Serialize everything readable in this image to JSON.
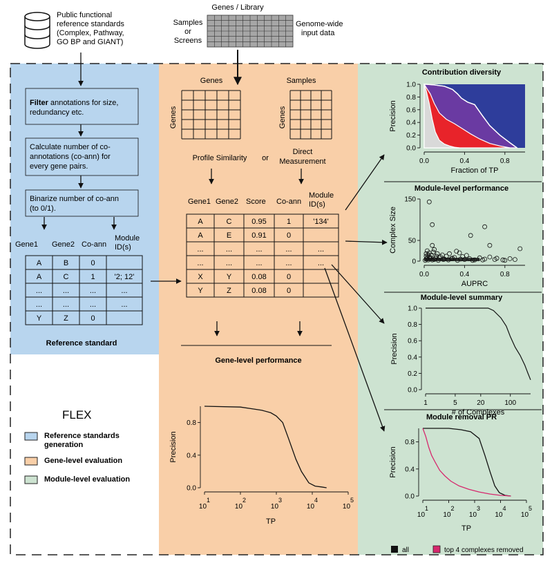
{
  "top": {
    "db_text": [
      "Public functional",
      "reference standards",
      "(Complex, Pathway,",
      "GO BP and GIANT)"
    ],
    "genes_library": "Genes / Library",
    "samples_or_screens": [
      "Samples",
      "or",
      "Screens"
    ],
    "genome_wide": [
      "Genome-wide",
      "input data"
    ]
  },
  "blue": {
    "box1": {
      "bold": "Filter",
      "lines": [
        " annotations for size,",
        "redundancy etc."
      ]
    },
    "box2": [
      "Calculate number of co-",
      "annotations (co-ann) for",
      "every gene pairs."
    ],
    "box3": [
      "Binarize number of co-ann",
      "(to 0/1)."
    ],
    "headers": [
      "Gene1",
      "Gene2",
      "Co-ann",
      "Module",
      "ID(s)"
    ],
    "rows": [
      [
        "A",
        "B",
        "0",
        ""
      ],
      [
        "A",
        "C",
        "1",
        "'2; 12'"
      ],
      [
        "...",
        "...",
        "...",
        "..."
      ],
      [
        "...",
        "...",
        "...",
        "..."
      ],
      [
        "Y",
        "Z",
        "0",
        ""
      ]
    ],
    "caption": "Reference standard"
  },
  "orange": {
    "genes_label": "Genes",
    "samples_label": "Samples",
    "row_axis_label": "Genes",
    "profile_similarity": "Profile Similarity",
    "or": "or",
    "direct": [
      "Direct",
      "Measurement"
    ],
    "headers": [
      "Gene1",
      "Gene2",
      "Score",
      "Co-ann",
      "Module",
      "ID(s)"
    ],
    "rows": [
      [
        "A",
        "C",
        "0.95",
        "1",
        "'134'"
      ],
      [
        "A",
        "E",
        "0.91",
        "0",
        ""
      ],
      [
        "...",
        "...",
        "...",
        "...",
        "..."
      ],
      [
        "...",
        "...",
        "...",
        "...",
        "..."
      ],
      [
        "X",
        "Y",
        "0.08",
        "0",
        ""
      ],
      [
        "Y",
        "Z",
        "0.08",
        "0",
        ""
      ]
    ],
    "gene_level_title": "Gene-level performance"
  },
  "legend": {
    "title": "FLEX",
    "items": [
      {
        "label": [
          "Reference standards",
          "generation"
        ],
        "color": "#b8d5ee"
      },
      {
        "label": [
          "Gene-level evaluation"
        ],
        "color": "#f9cfa8"
      },
      {
        "label": [
          "Module-level evaluation"
        ],
        "color": "#cde3d1"
      }
    ]
  },
  "colors": {
    "blue_panel": "#b8d5ee",
    "orange_panel": "#f9cfa8",
    "green_panel": "#cde3d1",
    "removed": "#d6286d"
  },
  "chart_data": [
    {
      "type": "area",
      "title": "Contribution diversity",
      "xlabel": "Fraction of TP",
      "ylabel": "Precision",
      "xlim": [
        0,
        1
      ],
      "ylim": [
        0,
        1
      ],
      "xticks": [
        "0.0",
        "0.4",
        "0.8"
      ],
      "yticks": [
        "0.0",
        "0.2",
        "0.4",
        "0.6",
        "0.8",
        "1.0"
      ],
      "series": [
        {
          "color": "#d9d9d9",
          "upper": [
            [
              0.0,
              1.0
            ],
            [
              0.02,
              0.9
            ],
            [
              0.05,
              0.7
            ],
            [
              0.08,
              0.45
            ],
            [
              0.11,
              0.25
            ],
            [
              0.15,
              0.12
            ],
            [
              0.2,
              0.06
            ],
            [
              0.25,
              0.03
            ],
            [
              0.3,
              0.01
            ],
            [
              0.35,
              0.0
            ]
          ]
        },
        {
          "color": "#e8232a",
          "upper": [
            [
              0.0,
              1.0
            ],
            [
              0.02,
              0.95
            ],
            [
              0.06,
              0.85
            ],
            [
              0.1,
              0.7
            ],
            [
              0.15,
              0.55
            ],
            [
              0.22,
              0.45
            ],
            [
              0.3,
              0.38
            ],
            [
              0.38,
              0.3
            ],
            [
              0.46,
              0.22
            ],
            [
              0.55,
              0.14
            ],
            [
              0.65,
              0.07
            ],
            [
              0.75,
              0.03
            ],
            [
              0.85,
              0.0
            ]
          ]
        },
        {
          "color": "#6a3aa2",
          "upper": [
            [
              0.0,
              1.0
            ],
            [
              0.02,
              1.0
            ],
            [
              0.1,
              0.99
            ],
            [
              0.2,
              0.97
            ],
            [
              0.28,
              0.92
            ],
            [
              0.33,
              0.85
            ],
            [
              0.37,
              0.78
            ],
            [
              0.43,
              0.72
            ],
            [
              0.5,
              0.68
            ],
            [
              0.58,
              0.5
            ],
            [
              0.65,
              0.35
            ],
            [
              0.75,
              0.2
            ],
            [
              0.85,
              0.08
            ],
            [
              0.92,
              0.0
            ]
          ]
        },
        {
          "color": "#2e3d9b",
          "upper": [
            [
              0.0,
              1.0
            ],
            [
              1.0,
              1.0
            ]
          ]
        }
      ]
    },
    {
      "type": "scatter",
      "title": "Module-level performance",
      "xlabel": "AUPRC",
      "ylabel": "Complex Size",
      "xlim": [
        0,
        1
      ],
      "ylim": [
        0,
        150
      ],
      "xticks": [
        "0.0",
        "0.4",
        "0.8"
      ],
      "yticks": [
        "0",
        "50",
        "150"
      ],
      "points": [
        [
          0.05,
          143
        ],
        [
          0.08,
          88
        ],
        [
          0.1,
          28
        ],
        [
          0.08,
          38
        ],
        [
          0.05,
          20
        ],
        [
          0.6,
          83
        ],
        [
          0.46,
          62
        ],
        [
          0.65,
          38
        ],
        [
          0.95,
          30
        ],
        [
          0.32,
          24
        ],
        [
          0.35,
          20
        ],
        [
          0.25,
          18
        ],
        [
          0.18,
          15
        ],
        [
          0.12,
          12
        ],
        [
          0.05,
          10
        ],
        [
          0.03,
          8
        ],
        [
          0.02,
          5
        ],
        [
          0.04,
          3
        ],
        [
          0.06,
          6
        ],
        [
          0.1,
          4
        ],
        [
          0.15,
          8
        ],
        [
          0.2,
          5
        ],
        [
          0.3,
          9
        ],
        [
          0.4,
          4
        ],
        [
          0.45,
          6
        ],
        [
          0.5,
          3
        ],
        [
          0.6,
          5
        ],
        [
          0.7,
          4
        ],
        [
          0.78,
          3
        ],
        [
          0.85,
          6
        ],
        [
          0.9,
          4
        ],
        [
          0.02,
          18
        ],
        [
          0.03,
          25
        ],
        [
          0.07,
          15
        ],
        [
          0.09,
          22
        ],
        [
          0.13,
          18
        ],
        [
          0.22,
          12
        ],
        [
          0.28,
          7
        ],
        [
          0.38,
          11
        ],
        [
          0.42,
          14
        ],
        [
          0.55,
          8
        ],
        [
          0.65,
          10
        ],
        [
          0.01,
          2
        ],
        [
          0.02,
          12
        ],
        [
          0.04,
          15
        ],
        [
          0.06,
          9
        ],
        [
          0.08,
          3
        ],
        [
          0.11,
          7
        ],
        [
          0.14,
          2
        ],
        [
          0.16,
          11
        ],
        [
          0.19,
          4
        ],
        [
          0.24,
          3
        ],
        [
          0.27,
          6
        ],
        [
          0.33,
          2
        ],
        [
          0.36,
          5
        ],
        [
          0.48,
          2
        ],
        [
          0.58,
          3
        ],
        [
          0.72,
          7
        ],
        [
          0.8,
          2
        ]
      ]
    },
    {
      "type": "line",
      "title": "Module-level summary",
      "xlabel": "# of Complexes",
      "ylabel": "Precision",
      "xscale": "log",
      "xlim": [
        1,
        300
      ],
      "ylim": [
        0,
        1
      ],
      "xticks": [
        "1",
        "5",
        "20",
        "100"
      ],
      "yticks": [
        "0.0",
        "0.2",
        "0.4",
        "0.6",
        "0.8",
        "1.0"
      ],
      "x": [
        1,
        3,
        10,
        30,
        40,
        60,
        80,
        100,
        130,
        170,
        220,
        260,
        300
      ],
      "values": [
        1.0,
        1.0,
        1.0,
        1.0,
        0.97,
        0.88,
        0.78,
        0.65,
        0.52,
        0.42,
        0.3,
        0.2,
        0.12
      ]
    },
    {
      "type": "line",
      "title": "Gene-level performance",
      "xlabel": "TP",
      "ylabel": "Precision",
      "xscale": "log",
      "xlim": [
        10,
        100000
      ],
      "ylim": [
        0,
        1
      ],
      "xticks": [
        "10^1",
        "10^2",
        "10^3",
        "10^4",
        "10^5"
      ],
      "yticks": [
        "0.0",
        "0.4",
        "0.8"
      ],
      "x": [
        10,
        100,
        200,
        400,
        700,
        1000,
        1500,
        2200,
        3500,
        5000,
        8000,
        12000,
        18000,
        25000
      ],
      "values": [
        1.0,
        0.99,
        0.97,
        0.95,
        0.92,
        0.88,
        0.8,
        0.6,
        0.35,
        0.2,
        0.06,
        0.02,
        0.01,
        0.0
      ]
    },
    {
      "type": "line",
      "title": "Module removal PR",
      "xlabel": "TP",
      "ylabel": "Precision",
      "xscale": "log",
      "xlim": [
        10,
        100000
      ],
      "ylim": [
        0,
        1
      ],
      "xticks": [
        "10^1",
        "10^2",
        "10^3",
        "10^4",
        "10^5"
      ],
      "yticks": [
        "0.0",
        "0.4",
        "0.8"
      ],
      "series": [
        {
          "name": "all",
          "color": "#111111",
          "x": [
            10,
            100,
            300,
            700,
            1500,
            2500,
            4000,
            6000,
            9000,
            15000,
            25000
          ],
          "values": [
            1.0,
            1.0,
            0.98,
            0.95,
            0.85,
            0.6,
            0.35,
            0.15,
            0.05,
            0.01,
            0.0
          ]
        },
        {
          "name": "top 4 complexes removed",
          "color": "#d6286d",
          "x": [
            10,
            13,
            17,
            22,
            30,
            45,
            70,
            120,
            250,
            600,
            1500,
            4000,
            10000,
            25000
          ],
          "values": [
            1.0,
            0.88,
            0.72,
            0.6,
            0.5,
            0.38,
            0.3,
            0.22,
            0.15,
            0.1,
            0.06,
            0.03,
            0.01,
            0.0
          ]
        }
      ]
    }
  ]
}
